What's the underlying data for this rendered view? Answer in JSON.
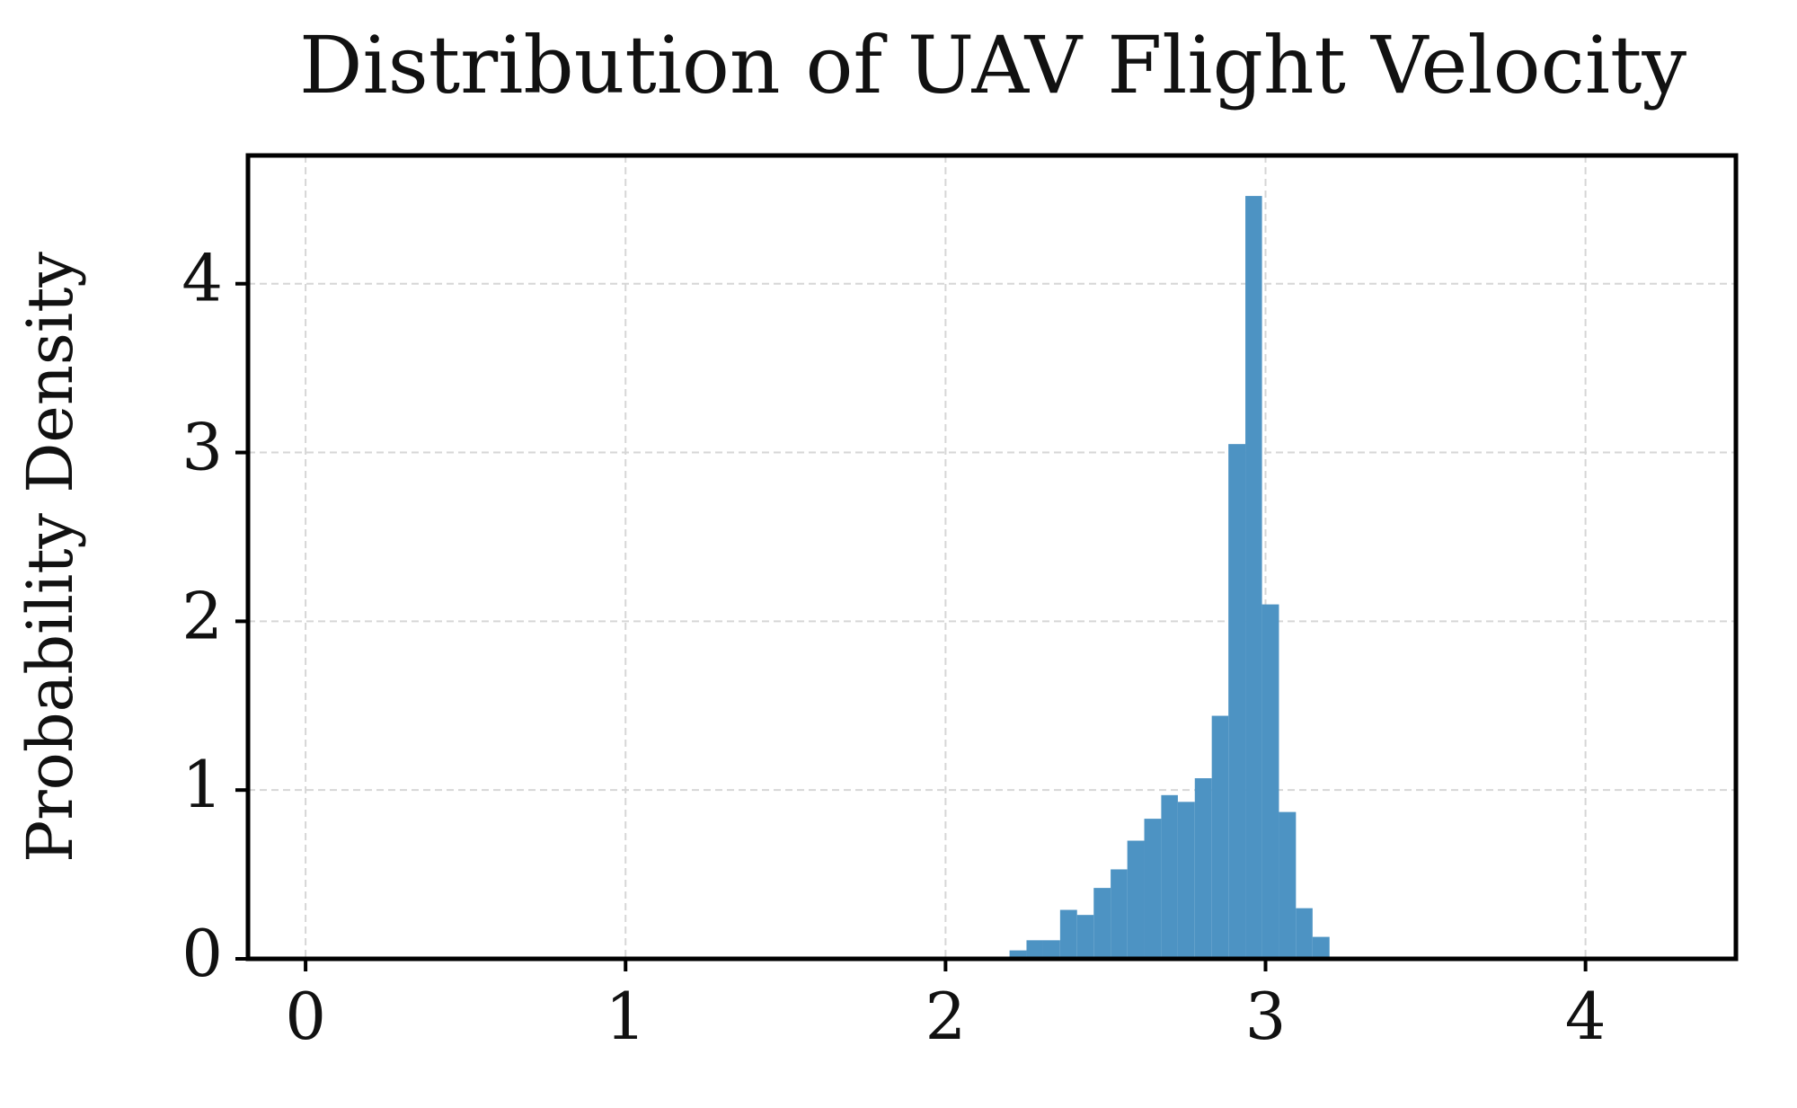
{
  "chart_data": {
    "type": "histogram",
    "title": "Distribution of UAV Flight Velocity",
    "y_label": "Probability Density",
    "bins": [
      2.2,
      2.253,
      2.305,
      2.358,
      2.411,
      2.463,
      2.516,
      2.568,
      2.621,
      2.674,
      2.726,
      2.779,
      2.832,
      2.884,
      2.937,
      2.989,
      3.042,
      3.095,
      3.147,
      3.2
    ],
    "values": [
      0.05,
      0.11,
      0.11,
      0.29,
      0.26,
      0.42,
      0.53,
      0.7,
      0.83,
      0.97,
      0.93,
      1.07,
      1.44,
      3.05,
      4.52,
      2.1,
      0.87,
      0.3,
      0.13
    ],
    "color": "#4d93c3",
    "xlim": [
      -0.18,
      4.47
    ],
    "ylim": [
      0,
      4.76
    ],
    "xticks": [
      0,
      1,
      2,
      3,
      4
    ],
    "yticks": [
      0,
      1,
      2,
      3,
      4
    ],
    "grid": true
  }
}
